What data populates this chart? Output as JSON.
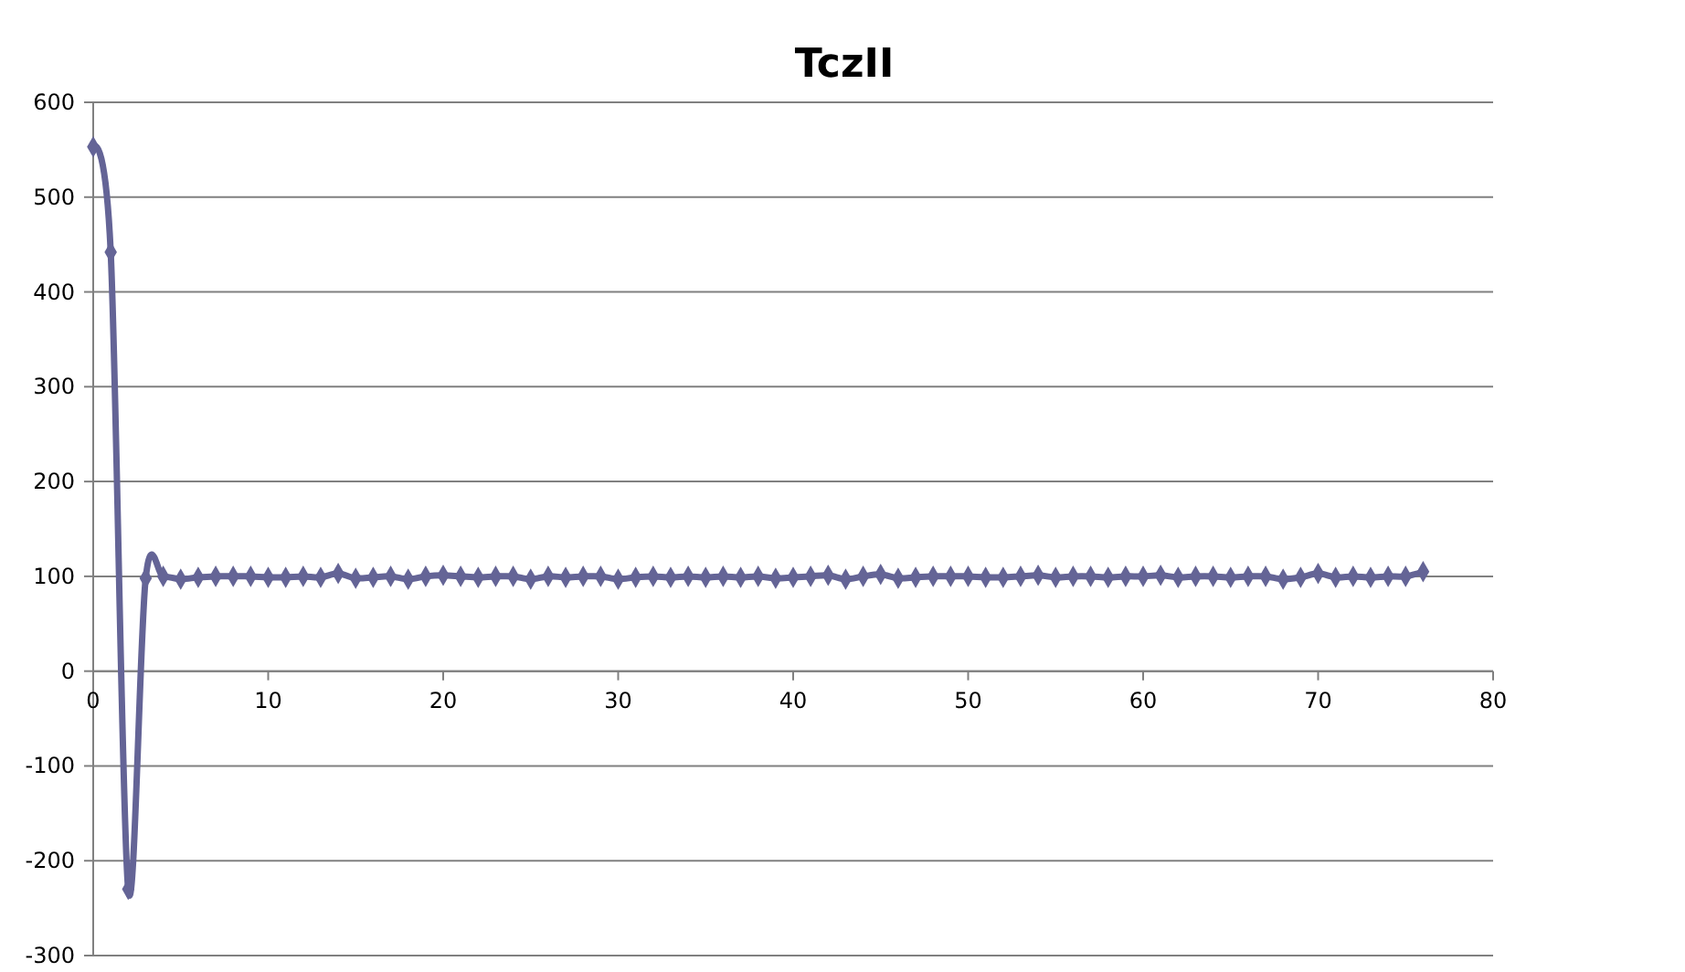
{
  "chart_data": {
    "type": "line",
    "title": "TczII",
    "x": [
      0,
      1,
      2,
      3,
      4,
      5,
      6,
      7,
      8,
      9,
      10,
      11,
      12,
      13,
      14,
      15,
      16,
      17,
      18,
      19,
      20,
      21,
      22,
      23,
      24,
      25,
      26,
      27,
      28,
      29,
      30,
      31,
      32,
      33,
      34,
      35,
      36,
      37,
      38,
      39,
      40,
      41,
      42,
      43,
      44,
      45,
      46,
      47,
      48,
      49,
      50,
      51,
      52,
      53,
      54,
      55,
      56,
      57,
      58,
      59,
      60,
      61,
      62,
      63,
      64,
      65,
      66,
      67,
      68,
      69,
      70,
      71,
      72,
      73,
      74,
      75,
      76
    ],
    "series": [
      {
        "color": "#646496",
        "values": [
          553,
          442,
          -230,
          98,
          100,
          97,
          99,
          100,
          100,
          100,
          99,
          99,
          100,
          99,
          103,
          98,
          99,
          100,
          97,
          100,
          101,
          100,
          99,
          100,
          100,
          97,
          100,
          99,
          100,
          100,
          97,
          99,
          100,
          99,
          100,
          99,
          100,
          99,
          100,
          98,
          99,
          100,
          101,
          97,
          100,
          102,
          98,
          99,
          100,
          100,
          100,
          99,
          99,
          100,
          101,
          99,
          100,
          100,
          99,
          100,
          100,
          101,
          99,
          100,
          100,
          99,
          100,
          100,
          97,
          99,
          103,
          99,
          100,
          99,
          100,
          100,
          105
        ]
      }
    ],
    "xlim": [
      0,
      80
    ],
    "ylim": [
      -300,
      600
    ],
    "xticks": [
      0,
      10,
      20,
      30,
      40,
      50,
      60,
      70,
      80
    ],
    "yticks": [
      -300,
      -200,
      -100,
      0,
      100,
      200,
      300,
      400,
      500,
      600
    ],
    "grid": "y",
    "marker": "diamond",
    "line_style": "solid"
  }
}
